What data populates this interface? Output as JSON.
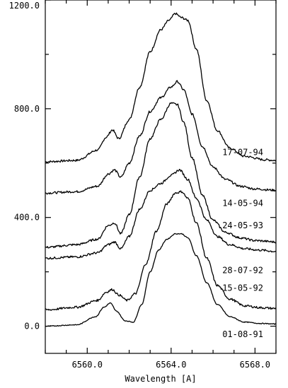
{
  "chart_data": {
    "type": "line",
    "title": "",
    "xlabel": "Wavelength [A]",
    "ylabel": "",
    "xlim": [
      6558.0,
      6569.0
    ],
    "ylim": [
      -100,
      1200
    ],
    "x_ticks": [
      6560.0,
      6564.0,
      6568.0
    ],
    "x_tick_labels": [
      "6560.0",
      "6564.0",
      "6568.0"
    ],
    "y_ticks": [
      0,
      400,
      800,
      1200
    ],
    "y_tick_labels": [
      "0.0",
      "400.0",
      "800.0",
      "1200.0"
    ],
    "grid": false,
    "legend": "none",
    "line_color": "#000000",
    "series": [
      {
        "name": "17-07-94",
        "label_value": 640,
        "x": [
          6558.0,
          6559.5,
          6560.5,
          6560.9,
          6561.2,
          6561.5,
          6562.0,
          6562.5,
          6563.0,
          6563.5,
          6563.9,
          6564.2,
          6564.5,
          6564.8,
          6565.2,
          6565.7,
          6566.2,
          6566.8,
          6567.5,
          6568.5,
          6569.0
        ],
        "y": [
          605,
          610,
          648,
          695,
          722,
          690,
          760,
          880,
          1010,
          1090,
          1125,
          1150,
          1135,
          1125,
          1020,
          830,
          720,
          655,
          625,
          612,
          610
        ]
      },
      {
        "name": "14-05-94",
        "label_value": 452,
        "x": [
          6558.0,
          6559.5,
          6560.5,
          6561.0,
          6561.3,
          6561.6,
          6562.0,
          6562.5,
          6563.0,
          6563.5,
          6564.0,
          6564.3,
          6564.6,
          6565.0,
          6565.5,
          6566.0,
          6566.6,
          6567.3,
          6568.0,
          6569.0
        ],
        "y": [
          490,
          495,
          515,
          560,
          575,
          548,
          600,
          700,
          790,
          840,
          880,
          900,
          870,
          780,
          660,
          585,
          540,
          515,
          505,
          500
        ]
      },
      {
        "name": "24-05-93",
        "label_value": 370,
        "x": [
          6558.0,
          6559.5,
          6560.5,
          6561.0,
          6561.3,
          6561.6,
          6562.0,
          6562.5,
          6563.0,
          6563.5,
          6564.0,
          6564.3,
          6564.6,
          6565.0,
          6565.5,
          6566.0,
          6566.6,
          6567.3,
          6568.0,
          6569.0
        ],
        "y": [
          290,
          300,
          320,
          370,
          380,
          340,
          410,
          550,
          690,
          760,
          820,
          815,
          750,
          620,
          480,
          390,
          345,
          325,
          315,
          310
        ]
      },
      {
        "name": "28-07-92",
        "label_value": 205,
        "x": [
          6558.0,
          6559.5,
          6560.5,
          6561.0,
          6561.3,
          6561.6,
          6562.0,
          6562.5,
          6563.0,
          6563.5,
          6564.0,
          6564.4,
          6564.8,
          6565.2,
          6565.7,
          6566.2,
          6566.8,
          6567.5,
          6568.2,
          6569.0
        ],
        "y": [
          250,
          255,
          270,
          300,
          310,
          285,
          330,
          430,
          500,
          525,
          555,
          575,
          540,
          470,
          390,
          330,
          300,
          285,
          280,
          275
        ]
      },
      {
        "name": "15-05-92",
        "label_value": 140,
        "x": [
          6558.0,
          6559.5,
          6560.5,
          6560.9,
          6561.2,
          6561.5,
          6561.9,
          6562.3,
          6562.8,
          6563.3,
          6563.8,
          6564.2,
          6564.5,
          6564.8,
          6565.2,
          6565.7,
          6566.2,
          6566.8,
          6567.5,
          6568.3,
          6569.0
        ],
        "y": [
          60,
          70,
          95,
          125,
          135,
          115,
          95,
          120,
          230,
          350,
          450,
          490,
          495,
          470,
          380,
          250,
          150,
          100,
          75,
          68,
          65
        ]
      },
      {
        "name": "01-08-91",
        "label_value": -30,
        "x": [
          6558.0,
          6559.5,
          6560.4,
          6560.8,
          6561.1,
          6561.4,
          6561.8,
          6562.2,
          6562.6,
          6563.0,
          6563.4,
          6563.8,
          6564.2,
          6564.5,
          6564.8,
          6565.2,
          6565.7,
          6566.2,
          6566.8,
          6567.5,
          6568.3,
          6569.0
        ],
        "y": [
          0,
          5,
          35,
          70,
          85,
          55,
          20,
          15,
          80,
          200,
          280,
          320,
          340,
          340,
          325,
          260,
          160,
          80,
          35,
          15,
          10,
          8
        ]
      }
    ]
  }
}
